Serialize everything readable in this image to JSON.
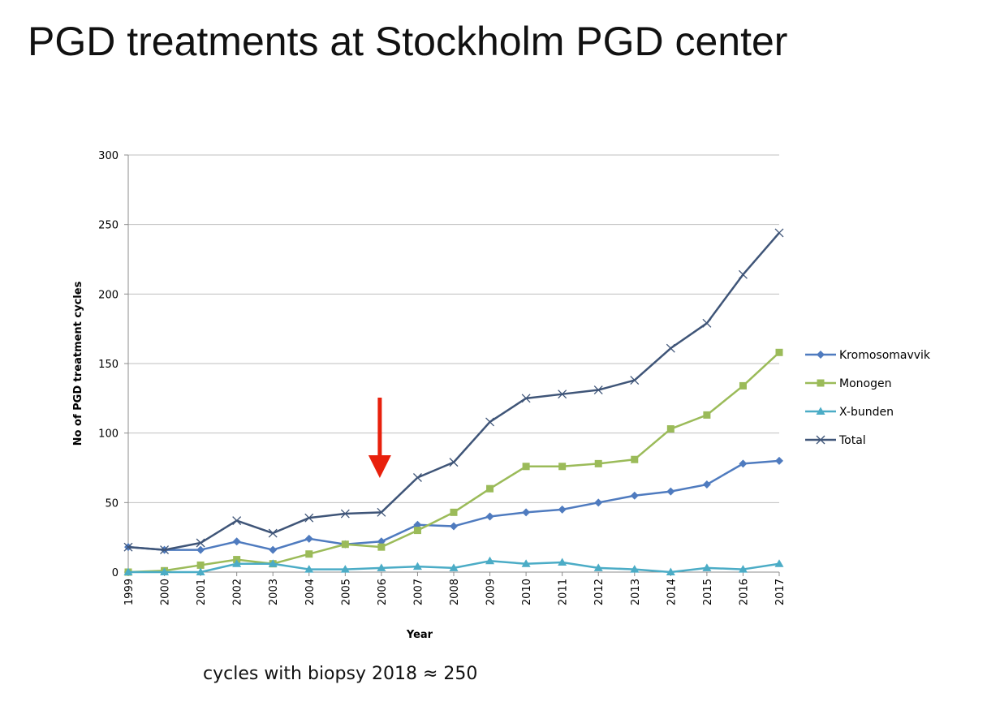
{
  "slide": {
    "title": "PGD treatments at Stockholm PGD center",
    "caption": "cycles with biopsy 2018 ≈ 250"
  },
  "chart_data": {
    "type": "line",
    "title": "",
    "xlabel": "Year",
    "ylabel": "No of PGD treatment cycles",
    "ylim": [
      0,
      300
    ],
    "yticks": [
      0,
      50,
      100,
      150,
      200,
      250,
      300
    ],
    "grid": true,
    "legend_position": "right",
    "categories": [
      "1999",
      "2000",
      "2001",
      "2002",
      "2003",
      "2004",
      "2005",
      "2006",
      "2007",
      "2008",
      "2009",
      "2010",
      "2011",
      "2012",
      "2013",
      "2014",
      "2015",
      "2016",
      "2017"
    ],
    "series": [
      {
        "name": "Kromosomavvik",
        "color": "#4f7bbf",
        "marker": "diamond",
        "values": [
          18,
          16,
          16,
          22,
          16,
          24,
          20,
          22,
          34,
          33,
          40,
          43,
          45,
          50,
          55,
          58,
          63,
          78,
          80
        ]
      },
      {
        "name": "Monogen",
        "color": "#9bbb59",
        "marker": "square",
        "values": [
          0,
          1,
          5,
          9,
          6,
          13,
          20,
          18,
          30,
          43,
          60,
          76,
          76,
          78,
          81,
          103,
          113,
          134,
          158
        ]
      },
      {
        "name": "X-bunden",
        "color": "#4bacc6",
        "marker": "triangle",
        "values": [
          0,
          0,
          0,
          6,
          6,
          2,
          2,
          3,
          4,
          3,
          8,
          6,
          7,
          3,
          2,
          0,
          3,
          2,
          6
        ]
      },
      {
        "name": "Total",
        "color": "#3f5578",
        "marker": "x",
        "values": [
          18,
          16,
          21,
          37,
          28,
          39,
          42,
          43,
          68,
          79,
          108,
          125,
          128,
          131,
          138,
          161,
          179,
          214,
          244
        ]
      }
    ],
    "annotations": [
      {
        "type": "arrow",
        "color": "#e8200c",
        "points_to": "2006"
      }
    ]
  }
}
